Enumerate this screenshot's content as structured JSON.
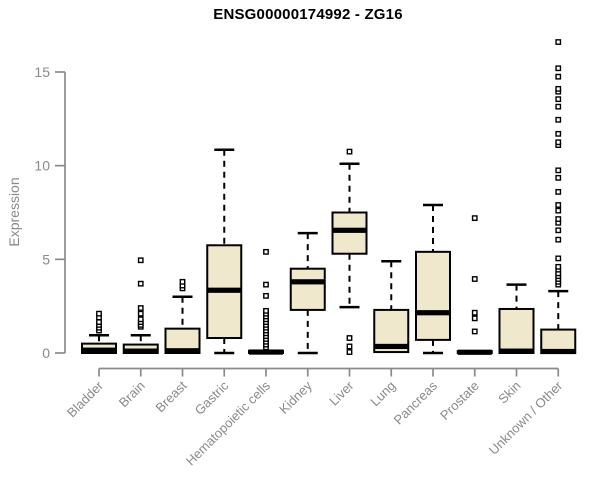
{
  "chart_data": {
    "type": "boxplot",
    "title": "ENSG00000174992 - ZG16",
    "ylabel": "Expression",
    "xlabel": "",
    "ylim": [
      0,
      15
    ],
    "yticks": [
      0,
      5,
      10,
      15
    ],
    "grid": false,
    "legend": "none",
    "box_fill": "#efe8cc",
    "box_stroke": "#000000",
    "axis_color": "#8a8a8a",
    "categories": [
      "Bladder",
      "Brain",
      "Breast",
      "Gastric",
      "Hematopoietic cells",
      "Kidney",
      "Liver",
      "Lung",
      "Pancreas",
      "Prostate",
      "Skin",
      "Unknown / Other"
    ],
    "series": [
      {
        "category": "Bladder",
        "q1": 0,
        "median": 0.15,
        "q3": 0.5,
        "whisker_low": 0,
        "whisker_high": 0.95,
        "outliers": [
          1.2,
          1.35,
          1.5,
          1.65,
          1.9,
          2.1
        ]
      },
      {
        "category": "Brain",
        "q1": 0,
        "median": 0.1,
        "q3": 0.45,
        "whisker_low": 0,
        "whisker_high": 0.95,
        "outliers": [
          1.4,
          1.5,
          1.65,
          1.8,
          2.1,
          2.4,
          3.7,
          4.95
        ]
      },
      {
        "category": "Breast",
        "q1": 0,
        "median": 0.12,
        "q3": 1.3,
        "whisker_low": 0,
        "whisker_high": 3.0,
        "outliers": [
          3.45,
          3.6,
          3.8
        ]
      },
      {
        "category": "Gastric",
        "q1": 0.8,
        "median": 3.35,
        "q3": 5.75,
        "whisker_low": 0,
        "whisker_high": 10.85,
        "outliers": []
      },
      {
        "category": "Hematopoietic cells",
        "q1": 0,
        "median": 0.05,
        "q3": 0.12,
        "whisker_low": 0,
        "whisker_high": 0.12,
        "outliers": [
          0.3,
          0.45,
          0.6,
          0.75,
          0.9,
          1.05,
          1.2,
          1.35,
          1.5,
          1.65,
          1.8,
          1.95,
          2.1,
          2.25,
          3.05,
          3.65,
          5.4
        ]
      },
      {
        "category": "Kidney",
        "q1": 2.3,
        "median": 3.8,
        "q3": 4.5,
        "whisker_low": 0,
        "whisker_high": 6.4,
        "outliers": []
      },
      {
        "category": "Liver",
        "q1": 5.3,
        "median": 6.55,
        "q3": 7.5,
        "whisker_low": 2.45,
        "whisker_high": 10.1,
        "outliers": [
          0.05,
          0.35,
          0.8,
          10.75
        ]
      },
      {
        "category": "Lung",
        "q1": 0.05,
        "median": 0.35,
        "q3": 2.3,
        "whisker_low": 0.05,
        "whisker_high": 4.9,
        "outliers": []
      },
      {
        "category": "Pancreas",
        "q1": 0.7,
        "median": 2.15,
        "q3": 5.4,
        "whisker_low": 0,
        "whisker_high": 7.9,
        "outliers": []
      },
      {
        "category": "Prostate",
        "q1": 0,
        "median": 0.04,
        "q3": 0.1,
        "whisker_low": 0,
        "whisker_high": 0.1,
        "outliers": [
          1.15,
          1.85,
          2.15,
          3.95,
          7.2
        ]
      },
      {
        "category": "Skin",
        "q1": 0,
        "median": 0.1,
        "q3": 2.35,
        "whisker_low": 0,
        "whisker_high": 3.65,
        "outliers": []
      },
      {
        "category": "Unknown / Other",
        "q1": 0,
        "median": 0.08,
        "q3": 1.25,
        "whisker_low": 0,
        "whisker_high": 3.3,
        "outliers": [
          3.65,
          3.8,
          3.95,
          4.1,
          4.25,
          4.45,
          4.6,
          5.05,
          6.05,
          6.55,
          6.95,
          7.15,
          7.6,
          7.9,
          8.6,
          9.35,
          9.75,
          11.1,
          11.25,
          11.7,
          12.45,
          13.15,
          13.55,
          13.95,
          14.1,
          14.75,
          15.2,
          16.6
        ]
      }
    ]
  }
}
